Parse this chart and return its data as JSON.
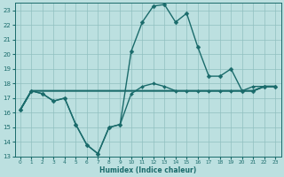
{
  "title": "",
  "xlabel": "Humidex (Indice chaleur)",
  "bg_color": "#bce0e0",
  "grid_color": "#90c0c0",
  "line_color": "#1a6b6b",
  "xlim": [
    -0.5,
    23.5
  ],
  "ylim": [
    13,
    23.5
  ],
  "yticks": [
    13,
    14,
    15,
    16,
    17,
    18,
    19,
    20,
    21,
    22,
    23
  ],
  "xticks": [
    0,
    1,
    2,
    3,
    4,
    5,
    6,
    7,
    8,
    9,
    10,
    11,
    12,
    13,
    14,
    15,
    16,
    17,
    18,
    19,
    20,
    21,
    22,
    23
  ],
  "series": [
    {
      "x": [
        0,
        1,
        2,
        3,
        4,
        5,
        6,
        7,
        8,
        9,
        10,
        11,
        12,
        13,
        14,
        15,
        16,
        17,
        18,
        19,
        20,
        21,
        22,
        23
      ],
      "y": [
        16.2,
        17.5,
        17.5,
        17.5,
        17.5,
        17.5,
        17.5,
        17.5,
        17.5,
        17.5,
        17.5,
        17.5,
        17.5,
        17.5,
        17.5,
        17.5,
        17.5,
        17.5,
        17.5,
        17.5,
        17.5,
        17.5,
        17.8,
        17.8
      ],
      "marker": false,
      "lw": 1.2
    },
    {
      "x": [
        0,
        1,
        2,
        3,
        4,
        5,
        6,
        7,
        8,
        9,
        10,
        11,
        12,
        13,
        14,
        15,
        16,
        17,
        18,
        19,
        20,
        21,
        22,
        23
      ],
      "y": [
        16.2,
        17.5,
        17.5,
        17.5,
        17.5,
        17.5,
        17.5,
        17.5,
        17.5,
        17.5,
        17.5,
        17.5,
        17.5,
        17.5,
        17.5,
        17.5,
        17.5,
        17.5,
        17.5,
        17.5,
        17.5,
        17.5,
        17.8,
        17.8
      ],
      "marker": false,
      "lw": 1.2
    },
    {
      "x": [
        0,
        1,
        2,
        3,
        4,
        5,
        6,
        7,
        8,
        9,
        10,
        11,
        12,
        13,
        14,
        15,
        16,
        17,
        18,
        19,
        20,
        21,
        22,
        23
      ],
      "y": [
        16.2,
        17.5,
        17.3,
        16.8,
        17.0,
        15.2,
        13.8,
        13.2,
        15.0,
        15.2,
        17.3,
        17.8,
        18.0,
        17.8,
        17.5,
        17.5,
        17.5,
        17.5,
        17.5,
        17.5,
        17.5,
        17.8,
        17.8,
        17.8
      ],
      "marker": "D",
      "ms": 2.0,
      "lw": 1.0
    },
    {
      "x": [
        0,
        1,
        2,
        3,
        4,
        5,
        6,
        7,
        8,
        9,
        10,
        11,
        12,
        13,
        14,
        15,
        16,
        17,
        18,
        19,
        20,
        21,
        22,
        23
      ],
      "y": [
        16.2,
        17.5,
        17.3,
        16.8,
        17.0,
        15.2,
        13.8,
        13.2,
        15.0,
        15.2,
        20.2,
        22.2,
        23.3,
        23.4,
        22.2,
        22.8,
        20.5,
        18.5,
        18.5,
        19.0,
        17.5,
        17.5,
        17.8,
        17.8
      ],
      "marker": "D",
      "ms": 2.5,
      "lw": 1.0
    }
  ]
}
